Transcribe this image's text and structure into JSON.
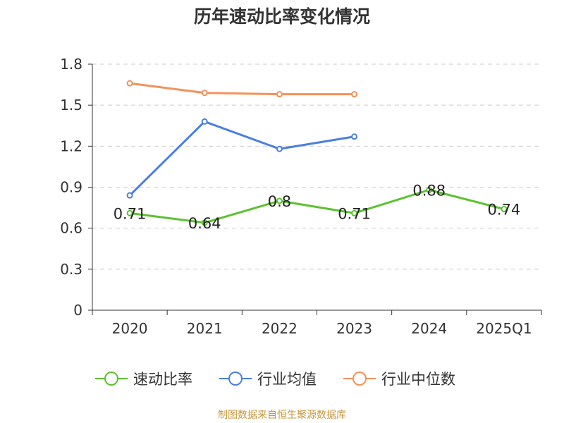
{
  "chart_data": {
    "type": "line",
    "title": "历年速动比率变化情况",
    "categories": [
      "2020",
      "2021",
      "2022",
      "2023",
      "2024",
      "2025Q1"
    ],
    "ylim": [
      0,
      1.8
    ],
    "yticks": [
      "0",
      "0.3",
      "0.6",
      "0.9",
      "1.2",
      "1.5",
      "1.8"
    ],
    "grid": true,
    "series": [
      {
        "name": "速动比率",
        "color": "#5bc22f",
        "values": [
          0.71,
          0.64,
          0.8,
          0.71,
          0.88,
          0.74
        ],
        "labels": [
          "0.71",
          "0.64",
          "0.8",
          "0.71",
          "0.88",
          "0.74"
        ]
      },
      {
        "name": "行业均值",
        "color": "#4a7fe0",
        "values": [
          0.84,
          1.38,
          1.18,
          1.27,
          null,
          null
        ]
      },
      {
        "name": "行业中位数",
        "color": "#f5915a",
        "values": [
          1.66,
          1.59,
          1.58,
          1.58,
          null,
          null
        ]
      }
    ],
    "legend_position": "bottom"
  },
  "source": "制图数据来自恒生聚源数据库"
}
